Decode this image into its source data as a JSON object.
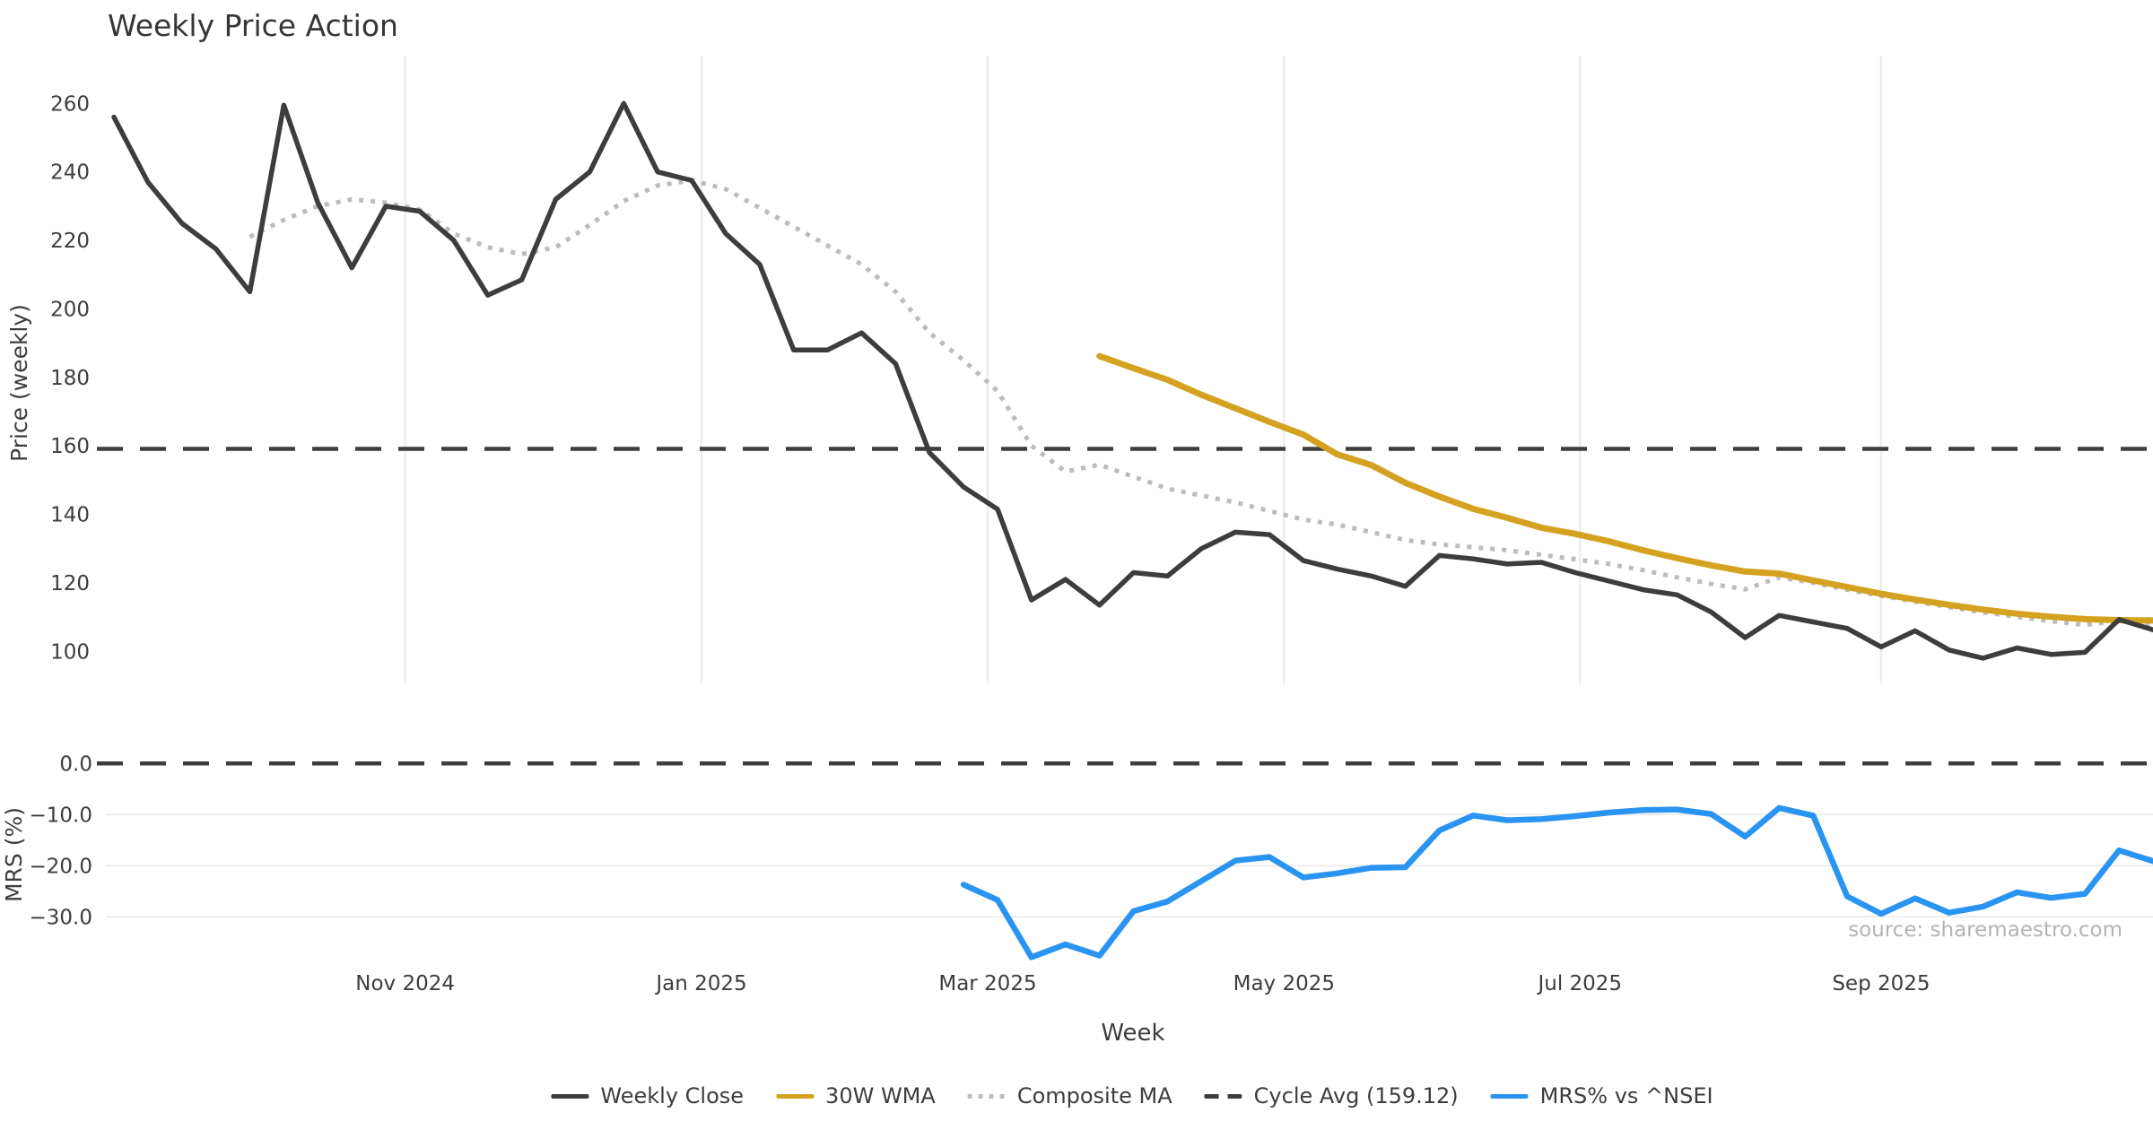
{
  "title": "Weekly Price Action",
  "source_note": "source: sharemaestro.com",
  "colors": {
    "weekly_close": "#3d3d3d",
    "wma30": "#d4a220",
    "composite_ma": "#bcbcbc",
    "cycle_avg": "#3d3d3d",
    "mrs": "#2994f1",
    "grid": "#ededed",
    "tick_text": "#3d3d3d",
    "title_text": "#363636",
    "source_text": "#b3b3b3"
  },
  "legend": [
    {
      "label": "Weekly Close",
      "style": "solid",
      "color": "#3d3d3d"
    },
    {
      "label": "30W WMA",
      "style": "solid",
      "color": "#d4a220"
    },
    {
      "label": "Composite MA",
      "style": "dotted",
      "color": "#bcbcbc"
    },
    {
      "label": "Cycle Avg (159.12)",
      "style": "dashed",
      "color": "#3d3d3d"
    },
    {
      "label": "MRS% vs ^NSEI",
      "style": "solid",
      "color": "#2994f1"
    }
  ],
  "chart_data": {
    "type": "line",
    "title": "Weekly Price Action",
    "xlabel": "Week",
    "x_unit": "weekly points, week 0 = first data point (Sep 2024)",
    "x_total_weeks": 60,
    "x_ticks": [
      {
        "label": "Nov 2024",
        "week": 8.57
      },
      {
        "label": "Jan 2025",
        "week": 17.29
      },
      {
        "label": "Mar 2025",
        "week": 25.71
      },
      {
        "label": "May 2025",
        "week": 34.43
      },
      {
        "label": "Jul 2025",
        "week": 43.14
      },
      {
        "label": "Sep 2025",
        "week": 52.0
      }
    ],
    "panels": [
      {
        "name": "price",
        "ylabel": "Price (weekly)",
        "ylim": [
          90,
          275
        ],
        "yticks": [
          260,
          240,
          220,
          200,
          180,
          160,
          140,
          120,
          100
        ],
        "ytick_labels": [
          "260",
          "240",
          "220",
          "200",
          "180",
          "160",
          "140",
          "120",
          "100"
        ],
        "reference_line": {
          "name": "Cycle Avg",
          "value": 159.12,
          "style": "dashed"
        },
        "series": [
          {
            "name": "Weekly Close",
            "start_week": 0,
            "values": [
              256,
              237,
              225,
              217.5,
              205,
              259.5,
              231,
              212,
              230,
              228.5,
              220,
              204,
              208.5,
              232,
              240,
              260,
              240,
              237.5,
              222,
              213,
              188,
              188,
              193,
              184,
              158,
              148,
              141.5,
              115,
              121,
              113.5,
              123,
              122,
              130,
              134.8,
              134.1,
              126.5,
              124,
              122,
              119,
              128,
              127,
              125.5,
              126,
              123,
              120.5,
              118,
              116.5,
              111.5,
              104,
              110.5,
              108.6,
              106.7,
              101.3,
              106,
              100.4,
              98,
              101,
              99.1,
              99.7,
              109.3,
              106.3
            ]
          },
          {
            "name": "30W WMA",
            "start_week": 29,
            "values": [
              186.2,
              182.7,
              179.3,
              174.9,
              171,
              167,
              163.3,
              157.5,
              154.4,
              149.2,
              145.2,
              141.6,
              139,
              136.1,
              134.3,
              132.1,
              129.5,
              127.2,
              125.1,
              123.3,
              122.7,
              120.7,
              118.8,
              116.8,
              115.1,
              113.6,
              112.2,
              111,
              110.1,
              109.4,
              109.1,
              109
            ]
          },
          {
            "name": "Composite MA",
            "start_week": 4,
            "values": [
              221,
              226,
              230,
              232,
              231,
              229,
              222,
              218,
              216,
              218,
              224.5,
              231.5,
              236,
              237.5,
              235,
              229.5,
              224,
              218.5,
              213,
              205,
              193,
              185,
              176,
              160,
              152.5,
              154.5,
              151,
              147.5,
              145.5,
              143.5,
              141,
              138.5,
              137,
              134.8,
              132.5,
              131.2,
              130.4,
              129.5,
              128.2,
              126.9,
              125.5,
              123.7,
              121.6,
              119.7,
              118.1,
              121.6,
              120,
              118,
              116.2,
              114.5,
              112.9,
              111.4,
              110.1,
              108.8,
              107.7,
              108.9,
              107.8
            ]
          }
        ]
      },
      {
        "name": "mrs",
        "ylabel": "MRS (%)",
        "ylim": [
          -38.5,
          5.5
        ],
        "yticks": [
          0,
          -10,
          -20,
          -30
        ],
        "ytick_labels": [
          "0.0",
          "−10.0",
          "−20.0",
          "−30.0"
        ],
        "reference_line": {
          "name": "zero line",
          "value": 0,
          "style": "dashed"
        },
        "series": [
          {
            "name": "MRS% vs ^NSEI",
            "start_week": 25,
            "values": [
              -23.7,
              -26.7,
              -37.9,
              -35.4,
              -37.6,
              -28.9,
              -27,
              -23,
              -19,
              -18.3,
              -22.3,
              -21.5,
              -20.4,
              -20.3,
              -13.1,
              -10.2,
              -11.1,
              -10.9,
              -10.3,
              -9.6,
              -9.1,
              -9,
              -9.9,
              -14.3,
              -8.7,
              -10.2,
              -26,
              -29.4,
              -26.4,
              -29.2,
              -28,
              -25.2,
              -26.3,
              -25.5,
              -17,
              -19.1
            ]
          }
        ]
      }
    ],
    "legend_entries": [
      "Weekly Close",
      "30W WMA",
      "Composite MA",
      "Cycle Avg (159.12)",
      "MRS% vs ^NSEI"
    ],
    "grid": "vertical month gridlines in price panel; horizontal gridlines in MRS panel",
    "legend_position": "bottom center"
  }
}
